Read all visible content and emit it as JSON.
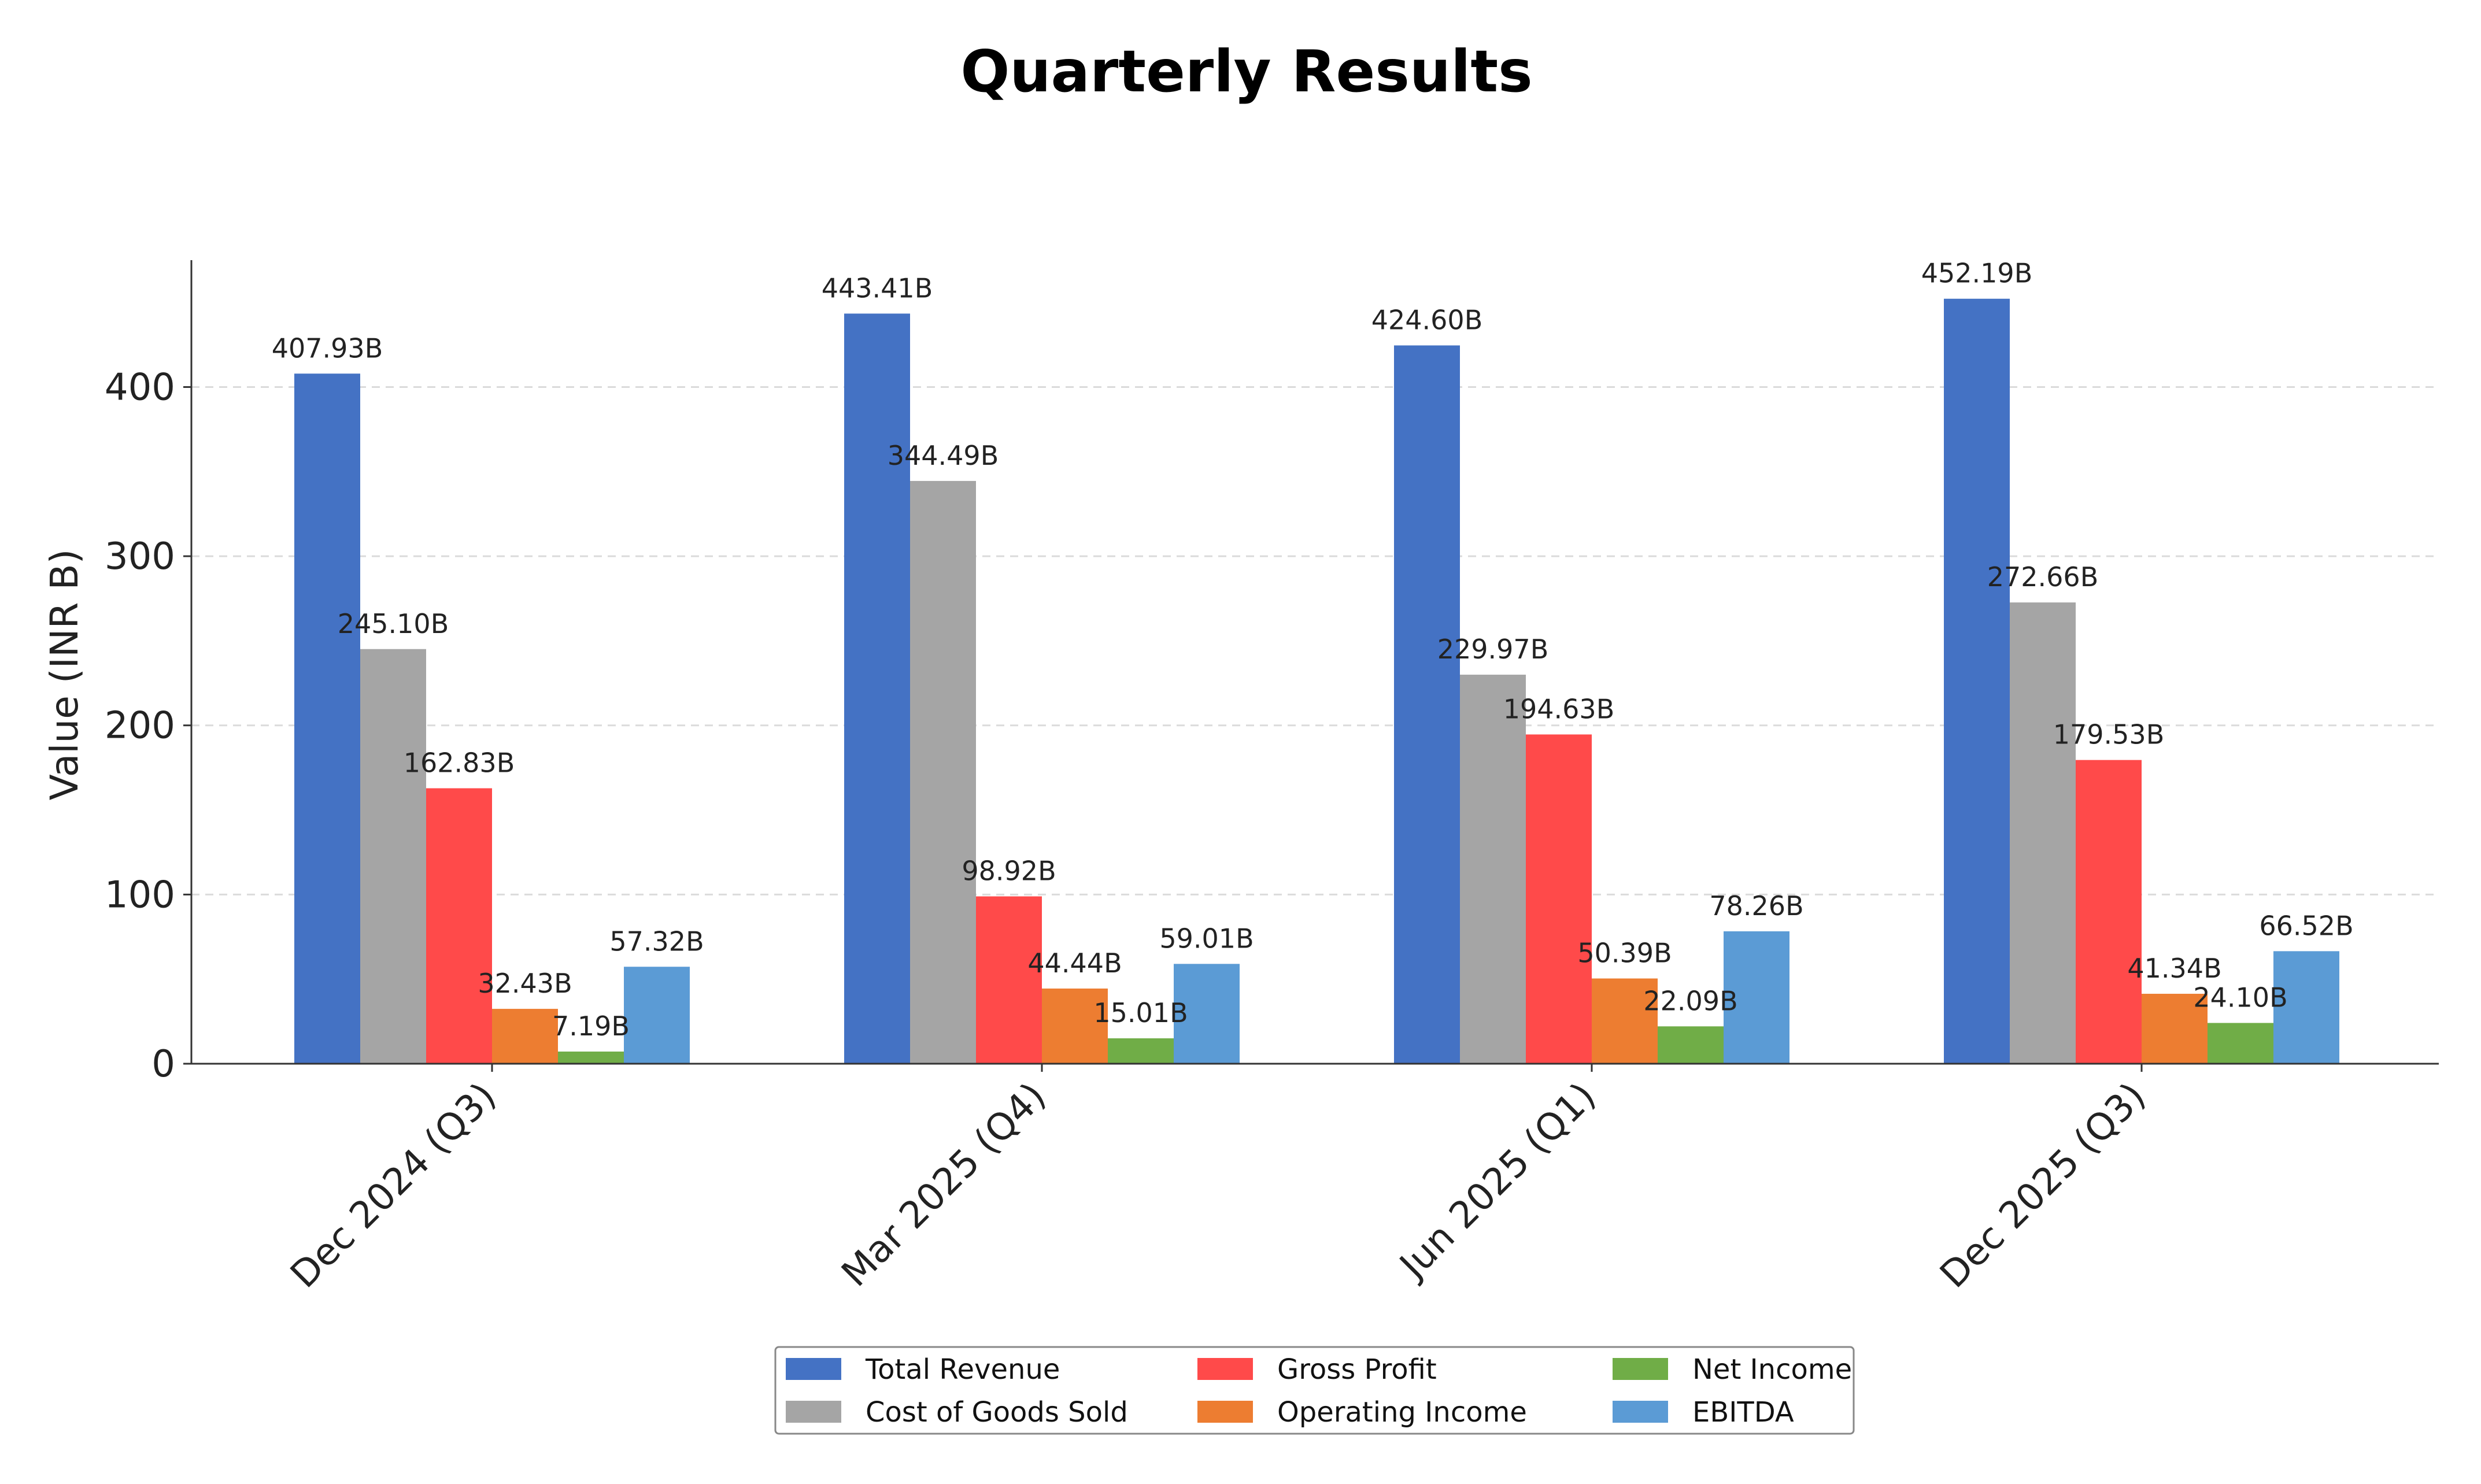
{
  "chart_data": {
    "type": "bar",
    "title": "Quarterly Results",
    "xlabel": "",
    "ylabel": "Value (INR B)",
    "ylim": [
      0,
      475
    ],
    "yticks": [
      0,
      100,
      200,
      300,
      400
    ],
    "grid": "y-dashed",
    "legend_position": "bottom-center",
    "categories": [
      "Dec 2024 (Q3)",
      "Mar 2025 (Q4)",
      "Jun 2025 (Q1)",
      "Dec 2025 (Q3)"
    ],
    "series": [
      {
        "name": "Total Revenue",
        "color": "#4472c4",
        "values": [
          407.93,
          443.41,
          424.6,
          452.19
        ],
        "labels": [
          "407.93B",
          "443.41B",
          "424.60B",
          "452.19B"
        ]
      },
      {
        "name": "Cost of Goods Sold",
        "color": "#a5a5a5",
        "values": [
          245.1,
          344.49,
          229.97,
          272.66
        ],
        "labels": [
          "245.10B",
          "344.49B",
          "229.97B",
          "272.66B"
        ]
      },
      {
        "name": "Gross Profit",
        "color": "#ff4a4a",
        "values": [
          162.83,
          98.92,
          194.63,
          179.53
        ],
        "labels": [
          "162.83B",
          "98.92B",
          "194.63B",
          "179.53B"
        ]
      },
      {
        "name": "Operating Income",
        "color": "#ed7d31",
        "values": [
          32.43,
          44.44,
          50.39,
          41.34
        ],
        "labels": [
          "32.43B",
          "44.44B",
          "50.39B",
          "41.34B"
        ]
      },
      {
        "name": "Net Income",
        "color": "#70ad47",
        "values": [
          7.19,
          15.01,
          22.09,
          24.1
        ],
        "labels": [
          "7.19B",
          "15.01B",
          "22.09B",
          "24.10B"
        ]
      },
      {
        "name": "EBITDA",
        "color": "#5b9bd5",
        "values": [
          57.32,
          59.01,
          78.26,
          66.52
        ],
        "labels": [
          "57.32B",
          "59.01B",
          "78.26B",
          "66.52B"
        ]
      }
    ]
  }
}
